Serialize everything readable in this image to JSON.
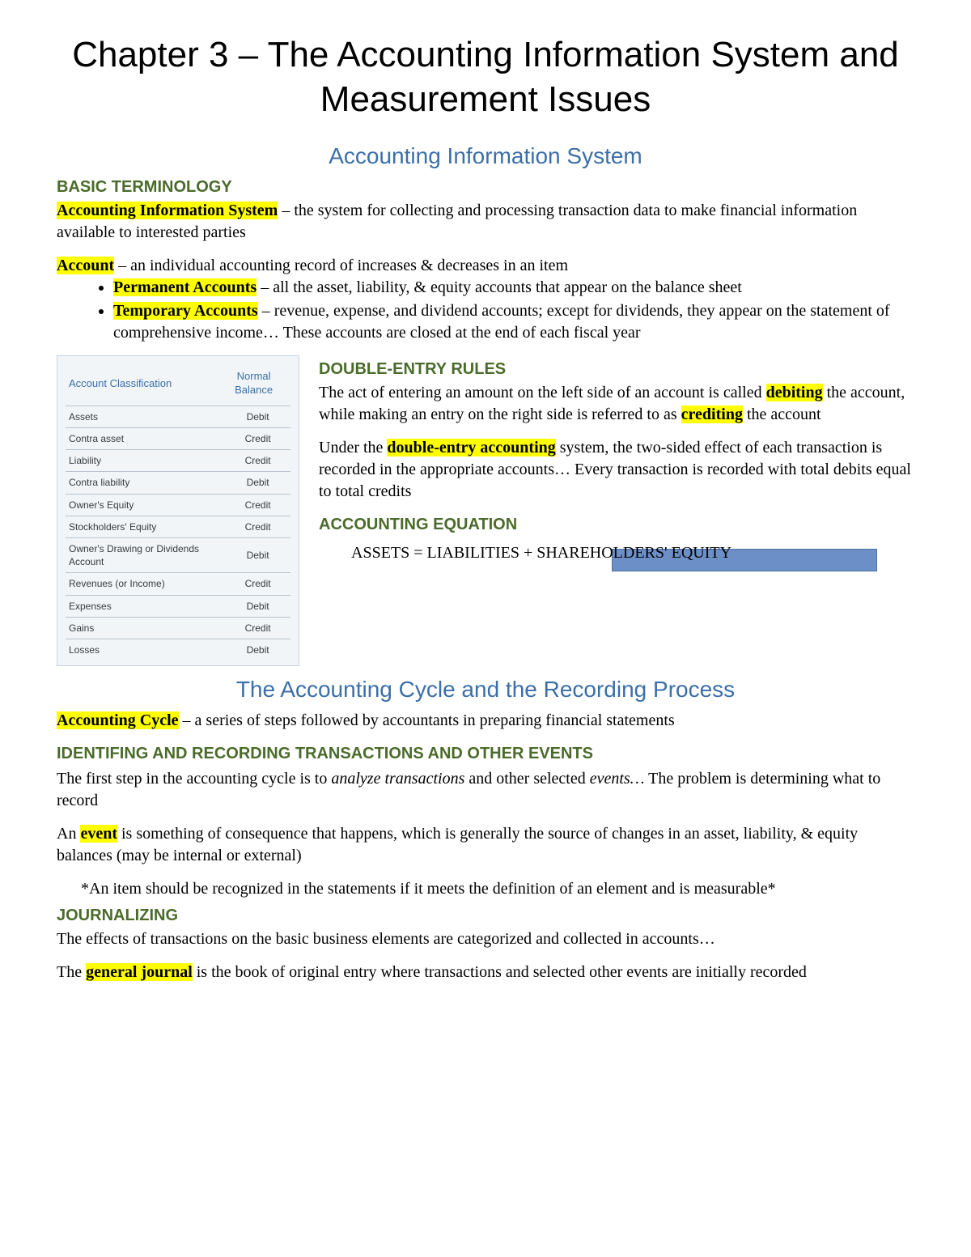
{
  "chapter_title": "Chapter 3 – The Accounting Information System and Measurement Issues",
  "section1": {
    "title": "Accounting Information System",
    "basic_term_heading": "BASIC TERMINOLOGY",
    "ais_term": "Accounting Information System",
    "ais_def": " – the system for collecting and processing transaction data to make financial information available to interested parties",
    "account_term": "Account",
    "account_def": " – an individual accounting record of increases & decreases in an item",
    "perm_term": "Permanent Accounts",
    "perm_def": " – all the asset, liability, & equity accounts that appear on the balance sheet",
    "temp_term": "Temporary Accounts",
    "temp_def": " – revenue, expense, and dividend accounts; except for dividends, they appear on the statement of comprehensive income… These accounts are closed at the end of each fiscal year"
  },
  "acct_table": {
    "col1": "Account Classification",
    "col2": "Normal Balance",
    "rows": [
      [
        "Assets",
        "Debit"
      ],
      [
        "Contra asset",
        "Credit"
      ],
      [
        "Liability",
        "Credit"
      ],
      [
        "Contra liability",
        "Debit"
      ],
      [
        "Owner's Equity",
        "Credit"
      ],
      [
        "Stockholders' Equity",
        "Credit"
      ],
      [
        "Owner's Drawing or Dividends Account",
        "Debit"
      ],
      [
        "Revenues (or Income)",
        "Credit"
      ],
      [
        "Expenses",
        "Debit"
      ],
      [
        "Gains",
        "Credit"
      ],
      [
        "Losses",
        "Debit"
      ]
    ]
  },
  "double_entry": {
    "heading": "DOUBLE-ENTRY RULES",
    "p1_a": "The act of entering an amount on the left side of an account is called ",
    "debiting": "debiting",
    "p1_b": " the account, while making an entry on the right side is referred to as ",
    "crediting": "crediting",
    "p1_c": " the account",
    "p2_a": "Under the ",
    "dea": "double-entry accounting",
    "p2_b": " system, the two-sided effect of each transaction is recorded in the appropriate accounts… Every transaction is recorded with total debits equal to total credits",
    "eq_heading": "ACCOUNTING EQUATION",
    "equation": "ASSETS = LIABILITIES + SHAREHOLDERS' EQUITY"
  },
  "section2": {
    "title": "The Accounting Cycle and the Recording Process",
    "cycle_term": "Accounting Cycle",
    "cycle_def": " – a series of steps followed by accountants in preparing financial statements",
    "ident_heading": "IDENTIFING AND RECORDING TRANSACTIONS AND OTHER EVENTS",
    "ident_p1_a": "The first step in the accounting cycle is to ",
    "ident_p1_em": "analyze transactions",
    "ident_p1_b": " and other selected ",
    "ident_p1_em2": "events…",
    "ident_p1_c": " The problem is determining what to record",
    "event_p_a": "An ",
    "event_term": "event",
    "event_p_b": " is something of consequence that happens, which is generally the source of changes in an asset, liability, & equity balances (may be internal or external)",
    "note": "*An item should be recognized in the statements if it meets the definition of an element and is measurable*",
    "journal_heading": "JOURNALIZING",
    "journal_p1": "The effects of transactions on the basic business elements are categorized and collected in accounts…",
    "journal_p2_a": "The ",
    "gj_term": "general journal",
    "journal_p2_b": " is the book of original entry where transactions and selected other events are initially recorded"
  }
}
